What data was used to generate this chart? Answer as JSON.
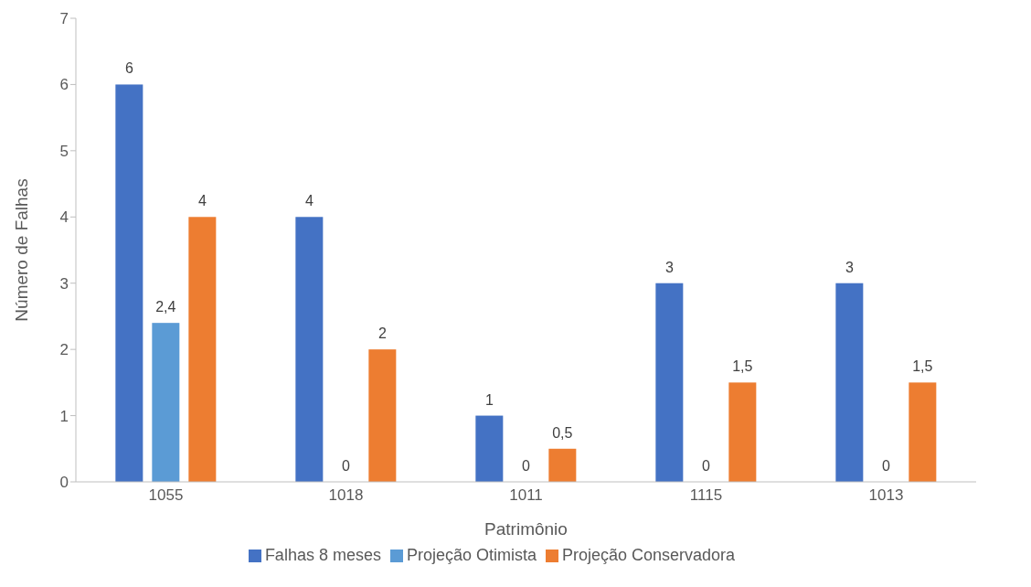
{
  "chart_data": {
    "type": "bar",
    "xlabel": "Patrimônio",
    "ylabel": "Número de Falhas",
    "categories": [
      "1055",
      "1018",
      "1011",
      "1115",
      "1013"
    ],
    "series": [
      {
        "name": "Falhas 8 meses",
        "color": "#4472c4",
        "values": [
          6,
          4,
          1,
          3,
          3
        ],
        "value_labels": [
          "6",
          "4",
          "1",
          "3",
          "3"
        ]
      },
      {
        "name": "Projeção Otimista",
        "color": "#5b9bd5",
        "values": [
          2.4,
          0,
          0,
          0,
          0
        ],
        "value_labels": [
          "2,4",
          "0",
          "0",
          "0",
          "0"
        ]
      },
      {
        "name": "Projeção Conservadora",
        "color": "#ed7d31",
        "values": [
          4,
          2,
          0.5,
          1.5,
          1.5
        ],
        "value_labels": [
          "4",
          "2",
          "0,5",
          "1,5",
          "1,5"
        ]
      }
    ],
    "ylim": [
      0,
      7
    ],
    "yticks": [
      0,
      1,
      2,
      3,
      4,
      5,
      6,
      7
    ],
    "grid": false,
    "legend": "bottom"
  }
}
